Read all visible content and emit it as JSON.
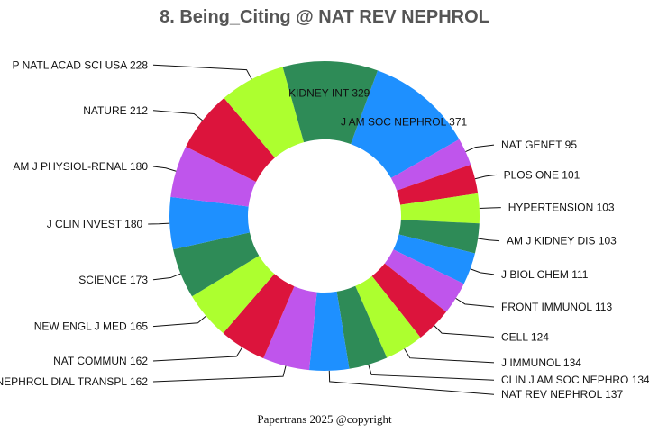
{
  "chart_data": {
    "type": "pie",
    "title": "8. Being_Citing @ NAT REV NEPHROL",
    "credit": "Papertrans 2025 @copyright",
    "palette": [
      "#1e90ff",
      "#bf55ec",
      "#dc143c",
      "#adff2f",
      "#2e8b57"
    ],
    "slices": [
      {
        "label": "J AM SOC NEPHROL",
        "value": 371
      },
      {
        "label": "NAT GENET",
        "value": 95
      },
      {
        "label": "PLOS ONE",
        "value": 101
      },
      {
        "label": "HYPERTENSION",
        "value": 103
      },
      {
        "label": "AM J KIDNEY DIS",
        "value": 103
      },
      {
        "label": "J BIOL CHEM",
        "value": 111
      },
      {
        "label": "FRONT IMMUNOL",
        "value": 113
      },
      {
        "label": "CELL",
        "value": 124
      },
      {
        "label": "J IMMUNOL",
        "value": 134
      },
      {
        "label": "CLIN J AM SOC NEPHRO",
        "value": 134
      },
      {
        "label": "NAT REV NEPHROL",
        "value": 137
      },
      {
        "label": "NEPHROL DIAL TRANSPL",
        "value": 162
      },
      {
        "label": "NAT COMMUN",
        "value": 162
      },
      {
        "label": "NEW ENGL J MED",
        "value": 165
      },
      {
        "label": "SCIENCE",
        "value": 173
      },
      {
        "label": "J CLIN INVEST",
        "value": 180
      },
      {
        "label": "AM J PHYSIOL-RENAL",
        "value": 180
      },
      {
        "label": "NATURE",
        "value": 212
      },
      {
        "label": "P NATL ACAD SCI USA",
        "value": 228
      },
      {
        "label": "KIDNEY INT",
        "value": 329
      }
    ]
  }
}
